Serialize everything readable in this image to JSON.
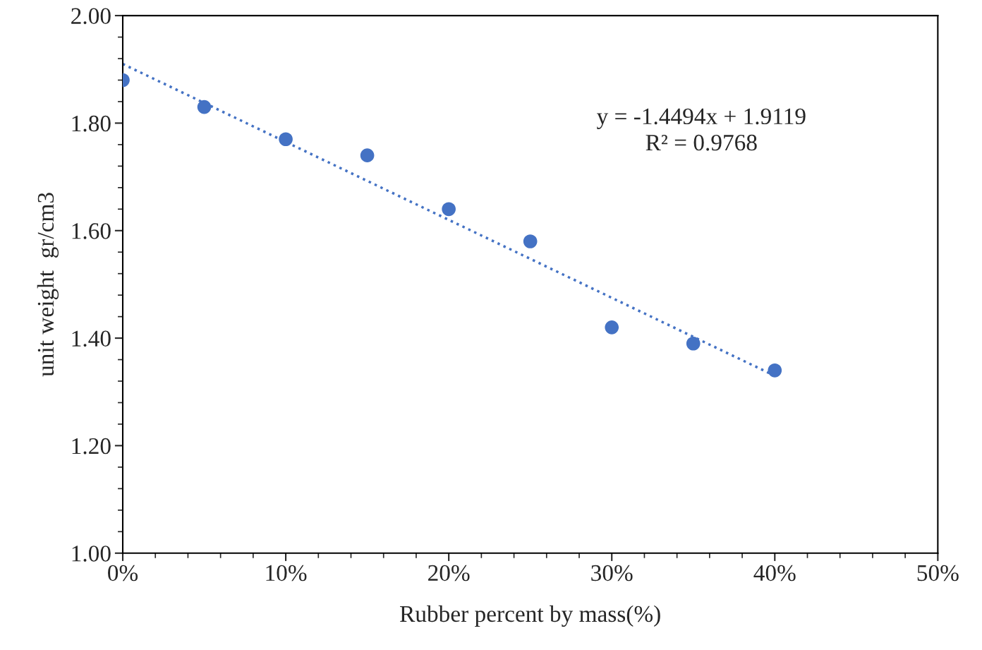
{
  "chart_data": {
    "type": "scatter",
    "xlabel": "Rubber percent by mass(%)",
    "ylabel": "unit weight  gr/cm3",
    "series": [
      {
        "color": "#4472c4",
        "marker": "circle",
        "x": [
          0,
          0.05,
          0.1,
          0.15,
          0.2,
          0.25,
          0.3,
          0.35,
          0.4
        ],
        "values": [
          1.88,
          1.83,
          1.77,
          1.74,
          1.64,
          1.58,
          1.42,
          1.39,
          1.34
        ]
      },
      {
        "type": "line",
        "color": "#4472c4",
        "line_style": "dotted",
        "x": [
          0,
          0.4
        ],
        "values": [
          1.91,
          1.33
        ]
      }
    ],
    "annotations": [
      "y = -1.4494x + 1.9119",
      "R² = 0.9768"
    ],
    "xlim": [
      0,
      0.5
    ],
    "ylim": [
      1.0,
      2.0
    ],
    "xticks": [
      {
        "value": 0,
        "label": "0%"
      },
      {
        "value": 0.1,
        "label": "10%"
      },
      {
        "value": 0.2,
        "label": "20%"
      },
      {
        "value": 0.3,
        "label": "30%"
      },
      {
        "value": 0.4,
        "label": "40%"
      },
      {
        "value": 0.5,
        "label": "50%"
      }
    ],
    "yticks": [
      {
        "value": 1.0,
        "label": "1.00"
      },
      {
        "value": 1.2,
        "label": "1.20"
      },
      {
        "value": 1.4,
        "label": "1.40"
      },
      {
        "value": 1.6,
        "label": "1.60"
      },
      {
        "value": 1.8,
        "label": "1.80"
      },
      {
        "value": 2.0,
        "label": "2.00"
      }
    ],
    "grid": false,
    "legend": false
  }
}
